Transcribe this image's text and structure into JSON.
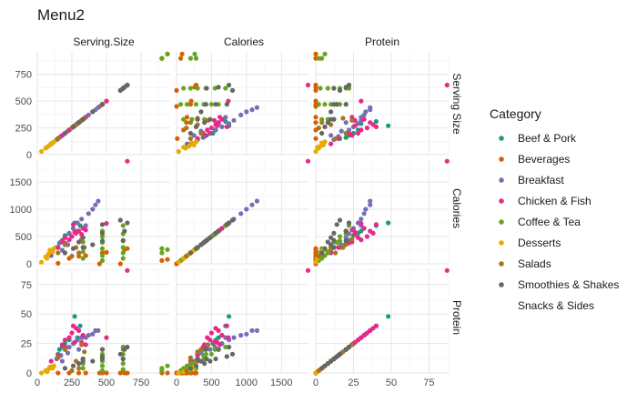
{
  "chart_data": {
    "type": "scatter",
    "title": "Menu2",
    "variables": [
      "Serving.Size",
      "Calories",
      "Protein"
    ],
    "row_strip_labels": [
      "Serving Size",
      "Calories",
      "Protein"
    ],
    "ranges": {
      "Serving.Size": [
        0,
        960
      ],
      "Calories": [
        0,
        1900
      ],
      "Protein": [
        0,
        88
      ]
    },
    "ticks": {
      "Serving.Size": [
        0,
        250,
        500,
        750
      ],
      "Calories": [
        0,
        500,
        1000,
        1500
      ],
      "Protein": [
        0,
        25,
        50,
        75
      ]
    },
    "grid": true,
    "legend": {
      "title": "Category",
      "placement": "right",
      "entries": [
        {
          "name": "Beef & Pork",
          "color": "#1B9E77"
        },
        {
          "name": "Beverages",
          "color": "#D95F02"
        },
        {
          "name": "Breakfast",
          "color": "#7570B3"
        },
        {
          "name": "Chicken & Fish",
          "color": "#E7298A"
        },
        {
          "name": "Coffee & Tea",
          "color": "#66A61E"
        },
        {
          "name": "Desserts",
          "color": "#E6AB02"
        },
        {
          "name": "Salads",
          "color": "#A6761D"
        },
        {
          "name": "Smoothies & Shakes",
          "color": "#666666"
        },
        {
          "name": "Snacks & Sides",
          "color": ""
        }
      ]
    },
    "series": [
      {
        "name": "Beef & Pork",
        "points": [
          {
            "serving": 200,
            "calories": 520,
            "protein": 25
          },
          {
            "serving": 230,
            "calories": 560,
            "protein": 28
          },
          {
            "serving": 270,
            "calories": 750,
            "protein": 48
          },
          {
            "serving": 180,
            "calories": 430,
            "protein": 22
          },
          {
            "serving": 160,
            "calories": 380,
            "protein": 20
          },
          {
            "serving": 290,
            "calories": 600,
            "protein": 30
          },
          {
            "serving": 310,
            "calories": 700,
            "protein": 40
          },
          {
            "serving": 150,
            "calories": 300,
            "protein": 16
          }
        ]
      },
      {
        "name": "Beverages",
        "points": [
          {
            "serving": 450,
            "calories": 0,
            "protein": 0
          },
          {
            "serving": 600,
            "calories": 0,
            "protein": 0
          },
          {
            "serving": 150,
            "calories": 10,
            "protein": 0
          },
          {
            "serving": 350,
            "calories": 150,
            "protein": 0
          },
          {
            "serving": 500,
            "calories": 210,
            "protein": 0
          },
          {
            "serving": 650,
            "calories": 280,
            "protein": 0
          },
          {
            "serving": 300,
            "calories": 140,
            "protein": 0
          },
          {
            "serving": 230,
            "calories": 100,
            "protein": 0
          },
          {
            "serving": 470,
            "calories": 200,
            "protein": 0
          },
          {
            "serving": 630,
            "calories": 260,
            "protein": 0
          },
          {
            "serving": 900,
            "calories": 60,
            "protein": 0
          },
          {
            "serving": 940,
            "calories": 80,
            "protein": 0
          }
        ]
      },
      {
        "name": "Breakfast",
        "points": [
          {
            "serving": 100,
            "calories": 150,
            "protein": 5
          },
          {
            "serving": 140,
            "calories": 300,
            "protein": 12
          },
          {
            "serving": 170,
            "calories": 400,
            "protein": 15
          },
          {
            "serving": 200,
            "calories": 480,
            "protein": 20
          },
          {
            "serving": 230,
            "calories": 550,
            "protein": 22
          },
          {
            "serving": 260,
            "calories": 650,
            "protein": 25
          },
          {
            "serving": 290,
            "calories": 750,
            "protein": 28
          },
          {
            "serving": 320,
            "calories": 820,
            "protein": 30
          },
          {
            "serving": 370,
            "calories": 920,
            "protein": 32
          },
          {
            "serving": 400,
            "calories": 1000,
            "protein": 33
          },
          {
            "serving": 420,
            "calories": 1080,
            "protein": 36
          },
          {
            "serving": 440,
            "calories": 1150,
            "protein": 36
          },
          {
            "serving": 220,
            "calories": 350,
            "protein": 17
          },
          {
            "serving": 180,
            "calories": 250,
            "protein": 10
          },
          {
            "serving": 300,
            "calories": 600,
            "protein": 20
          },
          {
            "serving": 350,
            "calories": 700,
            "protein": 30
          }
        ]
      },
      {
        "name": "Chicken & Fish",
        "points": [
          {
            "serving": 100,
            "calories": 200,
            "protein": 10
          },
          {
            "serving": 150,
            "calories": 300,
            "protein": 15
          },
          {
            "serving": 200,
            "calories": 380,
            "protein": 22
          },
          {
            "serving": 230,
            "calories": 440,
            "protein": 30
          },
          {
            "serving": 250,
            "calories": 500,
            "protein": 34
          },
          {
            "serving": 280,
            "calories": 560,
            "protein": 38
          },
          {
            "serving": 300,
            "calories": 600,
            "protein": 36
          },
          {
            "serving": 330,
            "calories": 650,
            "protein": 32
          },
          {
            "serving": 260,
            "calories": 720,
            "protein": 40
          },
          {
            "serving": 200,
            "calories": 480,
            "protein": 28
          },
          {
            "serving": 180,
            "calories": 400,
            "protein": 24
          },
          {
            "serving": 320,
            "calories": 540,
            "protein": 26
          },
          {
            "serving": 350,
            "calories": 620,
            "protein": 24
          },
          {
            "serving": 500,
            "calories": 740,
            "protein": 30
          },
          {
            "serving": 270,
            "calories": 580,
            "protein": 26
          },
          {
            "serving": 650,
            "calories": 1880,
            "protein": 87
          }
        ]
      },
      {
        "name": "Coffee & Tea",
        "points": [
          {
            "serving": 330,
            "calories": 220,
            "protein": 8
          },
          {
            "serving": 470,
            "calories": 280,
            "protein": 10
          },
          {
            "serving": 470,
            "calories": 390,
            "protein": 14
          },
          {
            "serving": 470,
            "calories": 500,
            "protein": 16
          },
          {
            "serving": 470,
            "calories": 600,
            "protein": 20
          },
          {
            "serving": 620,
            "calories": 300,
            "protein": 12
          },
          {
            "serving": 620,
            "calories": 420,
            "protein": 16
          },
          {
            "serving": 620,
            "calories": 550,
            "protein": 20
          },
          {
            "serving": 620,
            "calories": 700,
            "protein": 22
          },
          {
            "serving": 330,
            "calories": 100,
            "protein": 4
          },
          {
            "serving": 470,
            "calories": 150,
            "protein": 6
          },
          {
            "serving": 620,
            "calories": 200,
            "protein": 8
          },
          {
            "serving": 330,
            "calories": 400,
            "protein": 12
          },
          {
            "serving": 900,
            "calories": 280,
            "protein": 4
          },
          {
            "serving": 900,
            "calories": 200,
            "protein": 2
          },
          {
            "serving": 940,
            "calories": 260,
            "protein": 6
          },
          {
            "serving": 620,
            "calories": 100,
            "protein": 3
          },
          {
            "serving": 470,
            "calories": 60,
            "protein": 2
          }
        ]
      },
      {
        "name": "Desserts",
        "points": [
          {
            "serving": 30,
            "calories": 30,
            "protein": 0
          },
          {
            "serving": 60,
            "calories": 130,
            "protein": 2
          },
          {
            "serving": 80,
            "calories": 180,
            "protein": 3
          },
          {
            "serving": 110,
            "calories": 220,
            "protein": 4
          },
          {
            "serving": 90,
            "calories": 250,
            "protein": 5
          },
          {
            "serving": 120,
            "calories": 280,
            "protein": 6
          },
          {
            "serving": 70,
            "calories": 100,
            "protein": 1
          }
        ]
      },
      {
        "name": "Salads",
        "points": [
          {
            "serving": 250,
            "calories": 140,
            "protein": 2
          },
          {
            "serving": 280,
            "calories": 300,
            "protein": 10
          },
          {
            "serving": 300,
            "calories": 200,
            "protein": 4
          },
          {
            "serving": 150,
            "calories": 200,
            "protein": 13
          },
          {
            "serving": 320,
            "calories": 450,
            "protein": 24
          },
          {
            "serving": 340,
            "calories": 300,
            "protein": 18
          },
          {
            "serving": 200,
            "calories": 350,
            "protein": 20
          }
        ]
      },
      {
        "name": "Smoothies & Shakes",
        "points": [
          {
            "serving": 200,
            "calories": 200,
            "protein": 4
          },
          {
            "serving": 260,
            "calories": 280,
            "protein": 6
          },
          {
            "serving": 300,
            "calories": 400,
            "protein": 8
          },
          {
            "serving": 330,
            "calories": 480,
            "protein": 10
          },
          {
            "serving": 470,
            "calories": 560,
            "protein": 12
          },
          {
            "serving": 470,
            "calories": 720,
            "protein": 14
          },
          {
            "serving": 600,
            "calories": 800,
            "protein": 16
          },
          {
            "serving": 630,
            "calories": 600,
            "protein": 20
          },
          {
            "serving": 400,
            "calories": 350,
            "protein": 10
          },
          {
            "serving": 620,
            "calories": 430,
            "protein": 12
          },
          {
            "serving": 650,
            "calories": 750,
            "protein": 22
          },
          {
            "serving": 470,
            "calories": 420,
            "protein": 20
          },
          {
            "serving": 330,
            "calories": 300,
            "protein": 12
          }
        ]
      }
    ]
  }
}
